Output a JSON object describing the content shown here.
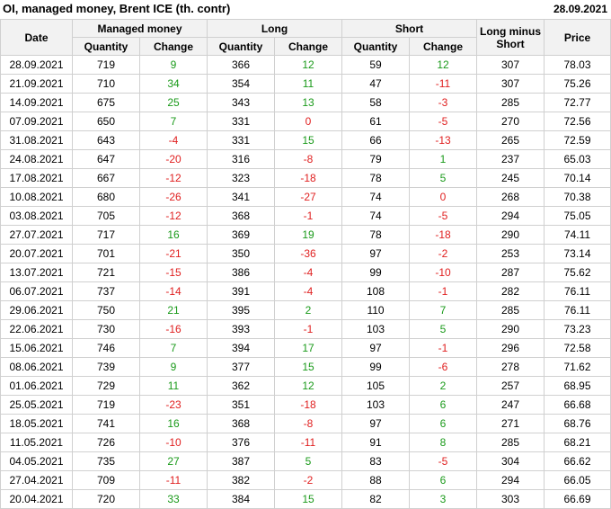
{
  "header": {
    "title": "OI, managed money, Brent ICE (th. contr)",
    "date": "28.09.2021"
  },
  "table": {
    "groups": [
      "Date",
      "Managed money",
      "Long",
      "Short",
      "Long minus Short",
      "Price"
    ],
    "subheaders": [
      "Quantity",
      "Change",
      "Quantity",
      "Change",
      "Quantity",
      "Change"
    ],
    "rows": [
      [
        "28.09.2021",
        "719",
        "9",
        "366",
        "12",
        "59",
        "12",
        "307",
        "78.03"
      ],
      [
        "21.09.2021",
        "710",
        "34",
        "354",
        "11",
        "47",
        "-11",
        "307",
        "75.26"
      ],
      [
        "14.09.2021",
        "675",
        "25",
        "343",
        "13",
        "58",
        "-3",
        "285",
        "72.77"
      ],
      [
        "07.09.2021",
        "650",
        "7",
        "331",
        "0",
        "61",
        "-5",
        "270",
        "72.56"
      ],
      [
        "31.08.2021",
        "643",
        "-4",
        "331",
        "15",
        "66",
        "-13",
        "265",
        "72.59"
      ],
      [
        "24.08.2021",
        "647",
        "-20",
        "316",
        "-8",
        "79",
        "1",
        "237",
        "65.03"
      ],
      [
        "17.08.2021",
        "667",
        "-12",
        "323",
        "-18",
        "78",
        "5",
        "245",
        "70.14"
      ],
      [
        "10.08.2021",
        "680",
        "-26",
        "341",
        "-27",
        "74",
        "0",
        "268",
        "70.38"
      ],
      [
        "03.08.2021",
        "705",
        "-12",
        "368",
        "-1",
        "74",
        "-5",
        "294",
        "75.05"
      ],
      [
        "27.07.2021",
        "717",
        "16",
        "369",
        "19",
        "78",
        "-18",
        "290",
        "74.11"
      ],
      [
        "20.07.2021",
        "701",
        "-21",
        "350",
        "-36",
        "97",
        "-2",
        "253",
        "73.14"
      ],
      [
        "13.07.2021",
        "721",
        "-15",
        "386",
        "-4",
        "99",
        "-10",
        "287",
        "75.62"
      ],
      [
        "06.07.2021",
        "737",
        "-14",
        "391",
        "-4",
        "108",
        "-1",
        "282",
        "76.11"
      ],
      [
        "29.06.2021",
        "750",
        "21",
        "395",
        "2",
        "110",
        "7",
        "285",
        "76.11"
      ],
      [
        "22.06.2021",
        "730",
        "-16",
        "393",
        "-1",
        "103",
        "5",
        "290",
        "73.23"
      ],
      [
        "15.06.2021",
        "746",
        "7",
        "394",
        "17",
        "97",
        "-1",
        "296",
        "72.58"
      ],
      [
        "08.06.2021",
        "739",
        "9",
        "377",
        "15",
        "99",
        "-6",
        "278",
        "71.62"
      ],
      [
        "01.06.2021",
        "729",
        "11",
        "362",
        "12",
        "105",
        "2",
        "257",
        "68.95"
      ],
      [
        "25.05.2021",
        "719",
        "-23",
        "351",
        "-18",
        "103",
        "6",
        "247",
        "66.68"
      ],
      [
        "18.05.2021",
        "741",
        "16",
        "368",
        "-8",
        "97",
        "6",
        "271",
        "68.76"
      ],
      [
        "11.05.2021",
        "726",
        "-10",
        "376",
        "-11",
        "91",
        "8",
        "285",
        "68.21"
      ],
      [
        "04.05.2021",
        "735",
        "27",
        "387",
        "5",
        "83",
        "-5",
        "304",
        "66.62"
      ],
      [
        "27.04.2021",
        "709",
        "-11",
        "382",
        "-2",
        "88",
        "6",
        "294",
        "66.05"
      ],
      [
        "20.04.2021",
        "720",
        "33",
        "384",
        "15",
        "82",
        "3",
        "303",
        "66.69"
      ]
    ]
  }
}
